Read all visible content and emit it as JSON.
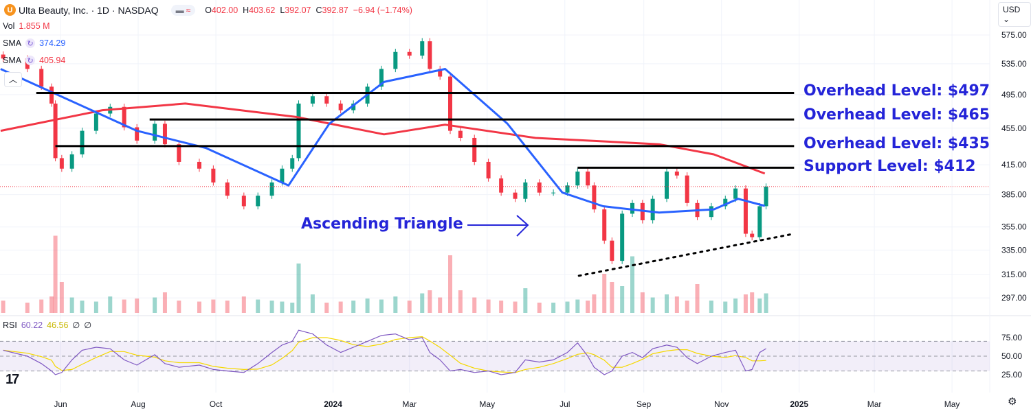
{
  "header": {
    "logo_letter": "U",
    "symbol_title": "Ulta Beauty, Inc. · 1D · NASDAQ",
    "open_label": "O",
    "open": "402.00",
    "high_label": "H",
    "high": "403.62",
    "low_label": "L",
    "low": "392.07",
    "close_label": "C",
    "close": "392.87",
    "change": "−6.94 (−1.74%)"
  },
  "legend": {
    "vol_label": "Vol",
    "vol_value": "1.855 M",
    "sma1_label": "SMA",
    "sma1_value": "374.29",
    "sma2_label": "SMA",
    "sma2_value": "405.94",
    "rsi_label": "RSI",
    "rsi_value": "60.22",
    "rsi_ma_value": "46.56",
    "rsi_extra1": "∅",
    "rsi_extra2": "∅"
  },
  "currency": "USD ⌄",
  "colors": {
    "up": "#089981",
    "down": "#f23645",
    "sma50": "#2962ff",
    "sma200": "#f23645",
    "annotation": "#2424d8",
    "rsi": "#7e57c2",
    "rsi_ma": "#f5d800"
  },
  "icons": [
    "refresh-icon",
    "chevron-up-icon",
    "tradingview-logo-icon",
    "settings-icon"
  ],
  "annotations": {
    "l497": "Overhead Level: $497",
    "l465": "Overhead Level: $465",
    "l435": "Overhead Level: $435",
    "l412": "Support Level: $412",
    "pattern": "Ascending Triangle"
  },
  "chart_data": {
    "type": "candlestick",
    "y_scale": "log",
    "yticks": [
      575,
      535,
      495,
      455,
      415,
      385,
      355,
      335,
      315,
      297
    ],
    "ytick_labels": [
      "575.00",
      "535.00",
      "495.00",
      "455.00",
      "415.00",
      "385.00",
      "355.00",
      "335.00",
      "315.00",
      "297.00"
    ],
    "rsi_ticks": [
      "75.00",
      "50.00",
      "25.00"
    ],
    "xtick_labels": [
      [
        "2023-06-01",
        "Jun"
      ],
      [
        "2023-08-01",
        "Aug"
      ],
      [
        "2023-10-01",
        "Oct"
      ],
      [
        "2024-01-01",
        "2024"
      ],
      [
        "2024-03-01",
        "Mar"
      ],
      [
        "2024-05-01",
        "May"
      ],
      [
        "2024-07-01",
        "Jul"
      ],
      [
        "2024-09-01",
        "Sep"
      ],
      [
        "2024-11-01",
        "Nov"
      ],
      [
        "2025-01-01",
        "2025"
      ],
      [
        "2025-03-01",
        "Mar"
      ],
      [
        "2025-05-01",
        "May"
      ]
    ],
    "last_price": 392.87,
    "closes": [
      [
        "2023-04-17",
        542
      ],
      [
        "2023-05-06",
        528
      ],
      [
        "2023-05-17",
        505
      ],
      [
        "2023-05-25",
        484
      ],
      [
        "2023-05-28",
        422
      ],
      [
        "2023-06-02",
        411
      ],
      [
        "2023-06-10",
        426
      ],
      [
        "2023-06-18",
        452
      ],
      [
        "2023-06-29",
        472
      ],
      [
        "2023-07-10",
        480
      ],
      [
        "2023-07-21",
        456
      ],
      [
        "2023-07-31",
        441
      ],
      [
        "2023-08-14",
        460
      ],
      [
        "2023-08-22",
        437
      ],
      [
        "2023-09-02",
        418
      ],
      [
        "2023-09-18",
        411
      ],
      [
        "2023-09-29",
        397
      ],
      [
        "2023-10-10",
        384
      ],
      [
        "2023-10-23",
        374
      ],
      [
        "2023-11-03",
        384
      ],
      [
        "2023-11-14",
        397
      ],
      [
        "2023-11-22",
        411
      ],
      [
        "2023-11-30",
        422
      ],
      [
        "2023-12-05",
        484
      ],
      [
        "2023-12-16",
        493
      ],
      [
        "2023-12-27",
        484
      ],
      [
        "2024-01-07",
        476
      ],
      [
        "2024-01-17",
        484
      ],
      [
        "2024-01-28",
        505
      ],
      [
        "2024-02-08",
        528
      ],
      [
        "2024-02-19",
        551
      ],
      [
        "2024-03-01",
        546
      ],
      [
        "2024-03-11",
        566
      ],
      [
        "2024-03-17",
        528
      ],
      [
        "2024-03-25",
        518
      ],
      [
        "2024-04-02",
        452
      ],
      [
        "2024-04-10",
        444
      ],
      [
        "2024-04-21",
        418
      ],
      [
        "2024-05-02",
        401
      ],
      [
        "2024-05-12",
        387
      ],
      [
        "2024-05-23",
        381
      ],
      [
        "2024-05-31",
        397
      ],
      [
        "2024-06-11",
        387
      ],
      [
        "2024-06-22",
        387
      ],
      [
        "2024-07-03",
        394
      ],
      [
        "2024-07-11",
        408
      ],
      [
        "2024-07-19",
        394
      ],
      [
        "2024-07-24",
        371
      ],
      [
        "2024-08-01",
        343
      ],
      [
        "2024-08-07",
        326
      ],
      [
        "2024-08-15",
        367
      ],
      [
        "2024-08-23",
        377
      ],
      [
        "2024-08-31",
        361
      ],
      [
        "2024-09-08",
        381
      ],
      [
        "2024-09-19",
        408
      ],
      [
        "2024-09-27",
        404
      ],
      [
        "2024-10-05",
        377
      ],
      [
        "2024-10-13",
        364
      ],
      [
        "2024-10-24",
        374
      ],
      [
        "2024-11-04",
        381
      ],
      [
        "2024-11-12",
        391
      ],
      [
        "2024-11-20",
        349
      ],
      [
        "2024-11-25",
        346
      ],
      [
        "2024-12-01",
        374
      ],
      [
        "2024-12-06",
        392.87
      ]
    ],
    "volume_m": [
      1.2,
      1.0,
      1.3,
      1.6,
      7.5,
      3.0,
      1.5,
      1.2,
      1.1,
      1.6,
      1.3,
      1.4,
      1.5,
      2.0,
      1.2,
      1.1,
      1.3,
      1.2,
      1.6,
      1.3,
      1.2,
      1.1,
      1.0,
      4.8,
      1.8,
      1.0,
      1.1,
      1.2,
      1.4,
      1.3,
      1.6,
      1.2,
      1.9,
      2.2,
      1.5,
      5.6,
      2.2,
      1.5,
      1.3,
      1.2,
      1.1,
      2.4,
      1.0,
      1.0,
      1.1,
      1.3,
      1.2,
      1.8,
      3.8,
      3.0,
      2.6,
      5.5,
      2.0,
      1.5,
      1.8,
      1.6,
      1.2,
      2.8,
      1.2,
      1.1,
      1.4,
      1.8,
      2.0,
      1.4,
      1.9
    ],
    "rsi": [
      58,
      50,
      40,
      30,
      25,
      28,
      45,
      58,
      62,
      60,
      45,
      38,
      52,
      40,
      35,
      38,
      32,
      30,
      28,
      40,
      55,
      65,
      70,
      85,
      80,
      65,
      55,
      62,
      70,
      78,
      80,
      72,
      75,
      55,
      45,
      30,
      32,
      28,
      30,
      25,
      28,
      45,
      42,
      45,
      55,
      68,
      50,
      35,
      25,
      30,
      50,
      55,
      48,
      60,
      65,
      62,
      48,
      40,
      50,
      55,
      58,
      30,
      32,
      55,
      60.22
    ],
    "sma50": [
      [
        "2023-04-15",
        528
      ],
      [
        "2023-07-31",
        452
      ],
      [
        "2023-09-23",
        433
      ],
      [
        "2023-11-27",
        394
      ],
      [
        "2023-12-29",
        460
      ],
      [
        "2024-02-10",
        511
      ],
      [
        "2024-03-29",
        528
      ],
      [
        "2024-05-17",
        460
      ],
      [
        "2024-06-29",
        387
      ],
      [
        "2024-07-31",
        374
      ],
      [
        "2024-09-13",
        368
      ],
      [
        "2024-10-26",
        371
      ],
      [
        "2024-11-14",
        381
      ],
      [
        "2024-12-05",
        374.29
      ]
    ],
    "sma200": [
      [
        "2023-04-15",
        452
      ],
      [
        "2023-07-04",
        476
      ],
      [
        "2023-09-07",
        484
      ],
      [
        "2023-12-03",
        468
      ],
      [
        "2024-02-10",
        448
      ],
      [
        "2024-03-29",
        459
      ],
      [
        "2024-06-08",
        444
      ],
      [
        "2024-09-13",
        437
      ],
      [
        "2024-10-26",
        426
      ],
      [
        "2024-12-05",
        405.94
      ]
    ],
    "levels": [
      {
        "price": 497,
        "from": "2023-05-13",
        "to": "2024-12-28"
      },
      {
        "price": 465,
        "from": "2023-08-10",
        "to": "2024-12-28"
      },
      {
        "price": 435,
        "from": "2023-05-28",
        "to": "2024-12-28"
      },
      {
        "price": 412,
        "from": "2024-07-11",
        "to": "2024-12-28"
      }
    ],
    "trendline": {
      "from": [
        "2024-07-12",
        314
      ],
      "to": [
        "2024-12-28",
        349
      ]
    }
  }
}
